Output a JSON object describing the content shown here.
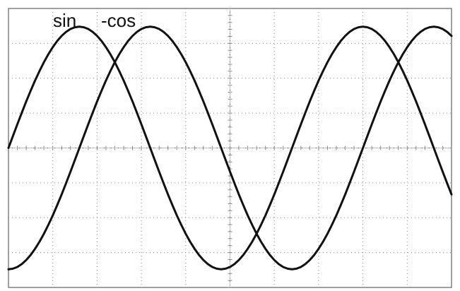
{
  "chart_data": {
    "type": "line",
    "x": [
      0,
      0.5,
      1,
      1.5,
      2,
      2.5,
      3,
      3.5,
      4,
      4.5,
      5,
      5.5,
      6,
      6.5,
      7,
      7.5,
      8,
      8.5,
      9,
      9.5,
      10,
      10.5,
      11,
      11.5,
      12,
      12.5,
      13,
      13.5,
      14,
      14.5,
      15,
      15.5,
      16,
      16.5,
      17,
      17.5,
      18,
      18.5,
      19,
      19.5,
      20,
      20.5,
      21,
      21.5,
      22,
      22.5,
      23,
      23.5,
      24,
      24.5,
      25,
      25.5,
      26,
      26.5,
      27,
      27.5,
      28,
      28.5,
      29,
      29.5,
      30,
      30.5,
      31,
      31.5,
      32,
      32.5,
      33,
      33.5,
      34,
      34.5,
      35,
      35.5,
      36,
      36.5,
      37,
      37.5,
      38,
      38.5,
      39,
      39.5,
      40,
      40.5,
      41,
      41.5,
      42,
      42.5,
      43,
      43.5,
      44,
      44.5,
      45,
      45.5,
      46,
      46.5,
      47,
      47.5,
      48,
      48.5,
      49,
      49.5,
      50
    ],
    "series": [
      {
        "name": "sin",
        "color": "#111111",
        "values": [
          0,
          0.098,
          0.195,
          0.29,
          0.383,
          0.471,
          0.556,
          0.634,
          0.707,
          0.773,
          0.831,
          0.882,
          0.924,
          0.957,
          0.981,
          0.995,
          1.0,
          0.995,
          0.981,
          0.957,
          0.924,
          0.882,
          0.831,
          0.773,
          0.707,
          0.634,
          0.556,
          0.471,
          0.383,
          0.29,
          0.195,
          0.098,
          0.0,
          -0.098,
          -0.195,
          -0.29,
          -0.383,
          -0.471,
          -0.556,
          -0.634,
          -0.707,
          -0.773,
          -0.831,
          -0.882,
          -0.924,
          -0.957,
          -0.981,
          -0.995,
          -1.0,
          -0.995,
          -0.981,
          -0.957,
          -0.924,
          -0.882,
          -0.831,
          -0.773,
          -0.707,
          -0.634,
          -0.556,
          -0.471,
          -0.383,
          -0.29,
          -0.195,
          -0.098,
          0.0,
          0.098,
          0.195,
          0.29,
          0.383,
          0.471,
          0.556,
          0.634,
          0.707,
          0.773,
          0.831,
          0.882,
          0.924,
          0.957,
          0.981,
          0.995,
          1.0,
          0.995,
          0.981,
          0.957,
          0.924,
          0.882,
          0.831,
          0.773,
          0.707,
          0.634,
          0.556,
          0.471,
          0.383,
          0.29,
          0.195,
          0.098,
          0.0,
          -0.098,
          -0.195,
          -0.29,
          -0.383
        ]
      },
      {
        "name": "-cos",
        "color": "#111111",
        "values": [
          -1.0,
          -0.995,
          -0.981,
          -0.957,
          -0.924,
          -0.882,
          -0.831,
          -0.773,
          -0.707,
          -0.634,
          -0.556,
          -0.471,
          -0.383,
          -0.29,
          -0.195,
          -0.098,
          0.0,
          0.098,
          0.195,
          0.29,
          0.383,
          0.471,
          0.556,
          0.634,
          0.707,
          0.773,
          0.831,
          0.882,
          0.924,
          0.957,
          0.981,
          0.995,
          1.0,
          0.995,
          0.981,
          0.957,
          0.924,
          0.882,
          0.831,
          0.773,
          0.707,
          0.634,
          0.556,
          0.471,
          0.383,
          0.29,
          0.195,
          0.098,
          0.0,
          -0.098,
          -0.195,
          -0.29,
          -0.383,
          -0.471,
          -0.556,
          -0.634,
          -0.707,
          -0.773,
          -0.831,
          -0.882,
          -0.924,
          -0.957,
          -0.981,
          -0.995,
          -1.0,
          -0.995,
          -0.981,
          -0.957,
          -0.924,
          -0.882,
          -0.831,
          -0.773,
          -0.707,
          -0.634,
          -0.556,
          -0.471,
          -0.383,
          -0.29,
          -0.195,
          -0.098,
          0.0,
          0.098,
          0.195,
          0.29,
          0.383,
          0.471,
          0.556,
          0.634,
          0.707,
          0.773,
          0.831,
          0.882,
          0.924,
          0.957,
          0.981,
          0.995,
          1.0,
          0.995,
          0.981,
          0.957,
          0.924
        ]
      }
    ],
    "labels": [
      {
        "text": "sin",
        "series": "sin"
      },
      {
        "text": "-cos",
        "series": "-cos"
      }
    ],
    "xlim": [
      0,
      50
    ],
    "ylim": [
      -1.15,
      1.15
    ],
    "grid": true,
    "grid_style": "dotted",
    "major_divisions_x": 10,
    "major_divisions_y": 8,
    "minor_ticks_per_division": 5,
    "title": "",
    "xlabel": "",
    "ylabel": ""
  },
  "colors": {
    "background": "#ffffff",
    "grid": "#8a8a8a",
    "trace": "#111111",
    "frame": "#777777"
  }
}
